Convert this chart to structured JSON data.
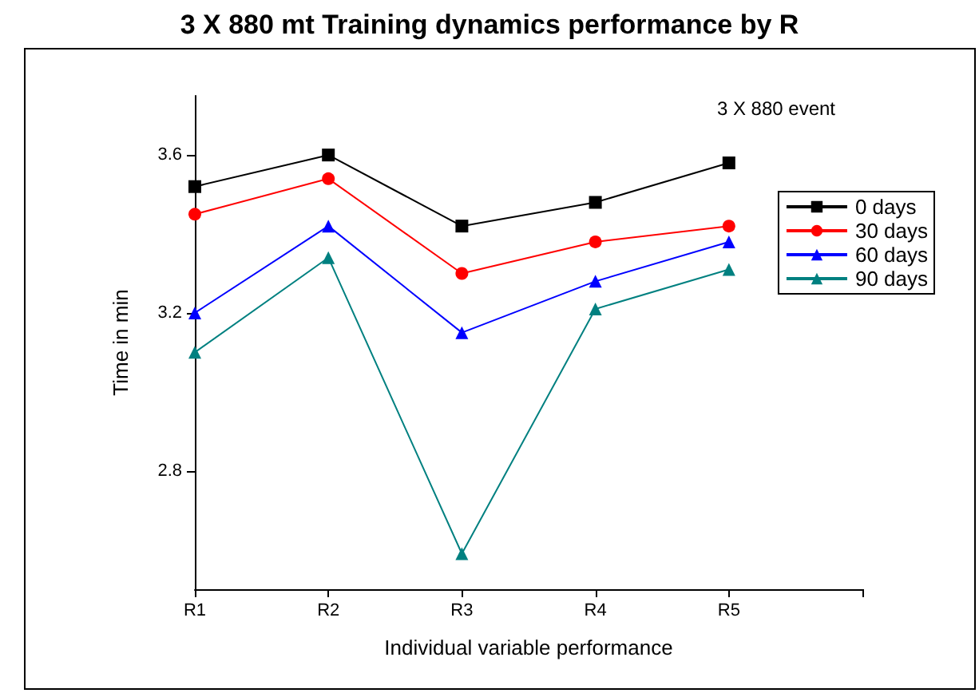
{
  "chart_data": {
    "type": "line",
    "title": "3 X 880 mt Training dynamics performance by R",
    "annotations": [
      "3 X 880 event"
    ],
    "xlabel": "Individual variable performance",
    "ylabel": "Time in min",
    "categories": [
      "R1",
      "R2",
      "R3",
      "R4",
      "R5"
    ],
    "ylim": [
      2.5,
      3.75
    ],
    "yticks": [
      2.8,
      3.2,
      3.6
    ],
    "grid": false,
    "legend": "right",
    "series": [
      {
        "name": "0 days",
        "color": "#000000",
        "marker": "square",
        "values": [
          3.52,
          3.6,
          3.42,
          3.48,
          3.58
        ]
      },
      {
        "name": "30 days",
        "color": "#ff0000",
        "marker": "circle",
        "values": [
          3.45,
          3.54,
          3.3,
          3.38,
          3.42
        ]
      },
      {
        "name": "60 days",
        "color": "#0000ff",
        "marker": "triangle",
        "values": [
          3.2,
          3.42,
          3.15,
          3.28,
          3.38
        ]
      },
      {
        "name": "90 days",
        "color": "#008080",
        "marker": "triangle",
        "values": [
          3.1,
          3.34,
          2.59,
          3.21,
          3.31
        ]
      }
    ]
  }
}
